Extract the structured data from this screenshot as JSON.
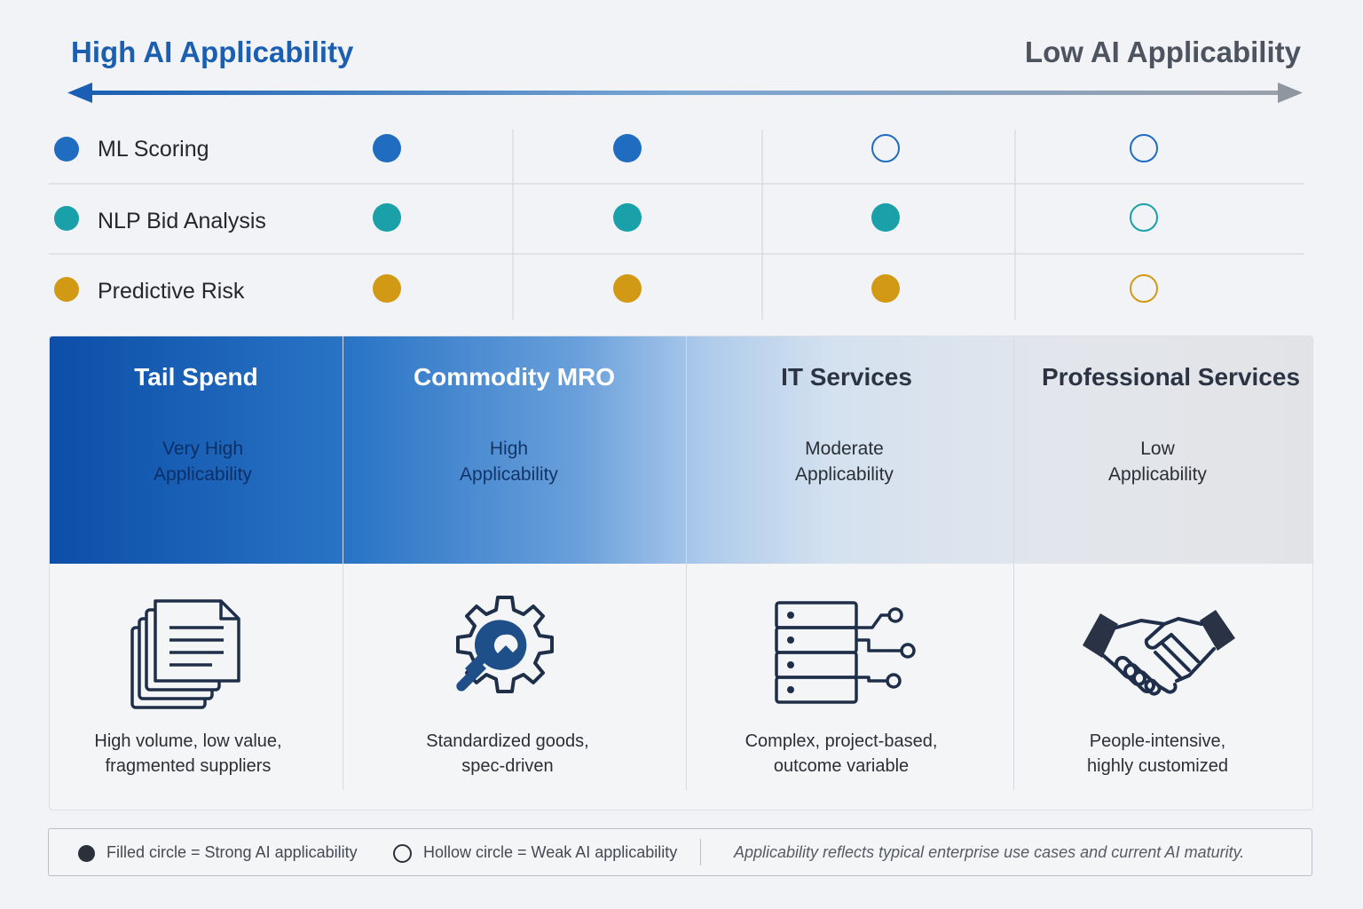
{
  "header": {
    "left_label": "High AI Applicability",
    "right_label": "Low AI Applicability"
  },
  "colors": {
    "blue": "#1f6cc0",
    "teal": "#1aa0a8",
    "gold": "#d29a14",
    "title_blue": "#1c5fb0",
    "icon_navy": "#1f2f4a"
  },
  "technologies": [
    {
      "label": "ML Scoring",
      "color": "#1f6cc0",
      "levels": [
        "filled",
        "filled",
        "hollow",
        "hollow"
      ]
    },
    {
      "label": "NLP Bid Analysis",
      "color": "#1aa0a8",
      "levels": [
        "filled",
        "filled",
        "filled",
        "hollow"
      ]
    },
    {
      "label": "Predictive Risk",
      "color": "#d29a14",
      "levels": [
        "filled",
        "filled",
        "filled",
        "hollow"
      ]
    }
  ],
  "categories": [
    {
      "title": "Tail Spend",
      "sub1": "Very High",
      "sub2": "Applicability",
      "icon": "documents-icon",
      "desc1": "High volume, low value,",
      "desc2": "fragmented suppliers"
    },
    {
      "title": "Commodity MRO",
      "sub1": "High",
      "sub2": "Applicability",
      "icon": "gear-wrench-icon",
      "desc1": "Standardized goods,",
      "desc2": "spec-driven"
    },
    {
      "title": "IT Services",
      "sub1": "Moderate",
      "sub2": "Applicability",
      "icon": "server-network-icon",
      "desc1": "Complex, project-based,",
      "desc2": "outcome variable"
    },
    {
      "title": "Professional Services",
      "sub1": "Low",
      "sub2": "Applicability",
      "icon": "handshake-icon",
      "desc1": "People-intensive,",
      "desc2": "highly customized"
    }
  ],
  "legend": {
    "filled": "Filled circle = Strong AI applicability",
    "hollow": "Hollow circle = Weak AI applicability",
    "note": "Applicability reflects typical enterprise use cases and current AI maturity."
  }
}
